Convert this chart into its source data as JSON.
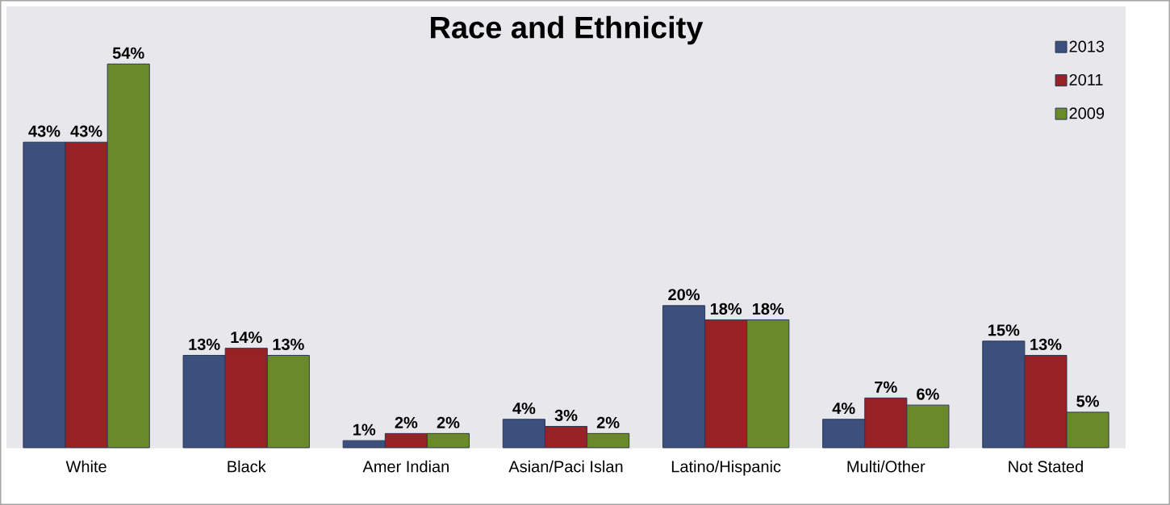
{
  "chart_data": {
    "type": "bar",
    "title": "Race and Ethnicity",
    "categories": [
      "White",
      "Black",
      "Amer Indian",
      "Asian/Paci Islan",
      "Latino/Hispanic",
      "Multi/Other",
      "Not Stated"
    ],
    "series": [
      {
        "name": "2013",
        "color": "#3d4f7c",
        "values": [
          43,
          13,
          1,
          4,
          20,
          4,
          15
        ],
        "value_labels": [
          "43%",
          "13%",
          "1%",
          "4%",
          "20%",
          "4%",
          "15%"
        ]
      },
      {
        "name": "2011",
        "color": "#962226",
        "values": [
          43,
          14,
          2,
          3,
          18,
          7,
          13
        ],
        "value_labels": [
          "43%",
          "14%",
          "2%",
          "3%",
          "18%",
          "7%",
          "13%"
        ]
      },
      {
        "name": "2009",
        "color": "#6a8a2a",
        "values": [
          54,
          13,
          2,
          2,
          18,
          6,
          5
        ],
        "value_labels": [
          "54%",
          "13%",
          "2%",
          "2%",
          "18%",
          "6%",
          "5%"
        ]
      }
    ],
    "legend": "top right"
  }
}
